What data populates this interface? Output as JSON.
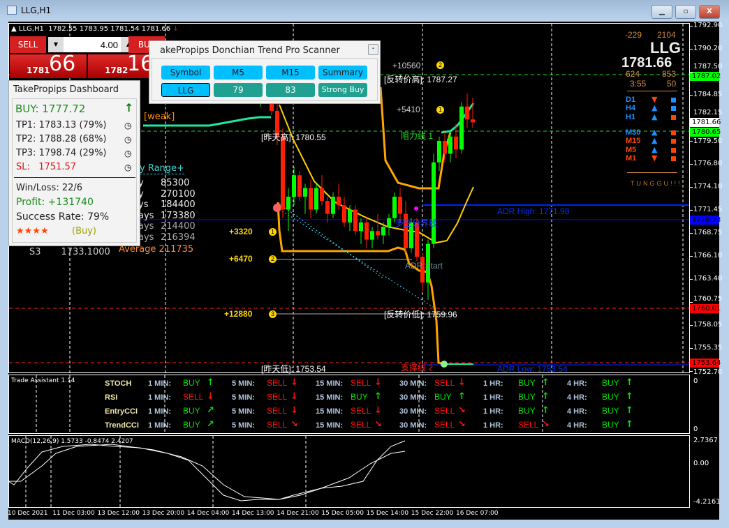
{
  "window": {
    "title": "LLG,H1",
    "buttons": [
      "minimize",
      "maximize",
      "close"
    ]
  },
  "chart_header": {
    "symbol": "LLG,H1",
    "ohlc": "1782.55 1783.95 1781.54 1781.66"
  },
  "trade_panel": {
    "sell_label": "SELL",
    "buy_label": "BUY",
    "volume": "4.00",
    "sell_big": "1781",
    "sell_small": "66",
    "buy_big": "1782",
    "buy_small": "16"
  },
  "dashboard": {
    "title": "TakePropips Dashboard",
    "signal": "BUY: 1777.72",
    "tp1": "TP1: 1783.13 (79%)",
    "tp2": "TP2: 1788.28 (68%)",
    "tp3": "TP3: 1798.74 (29%)",
    "sl_label": "SL:",
    "sl_value": "1751.57",
    "winloss": "Win/Loss: 22/6",
    "profit": "Profit: +131740",
    "success": "Success Rate: 79%",
    "stars": "★★★★",
    "rating": "(Buy)"
  },
  "scanner": {
    "title": "akePropips Donchian Trend Pro Scanner",
    "minimize": "-",
    "headers": [
      "Symbol",
      "M5",
      "M15",
      "Summary"
    ],
    "row": [
      "LLG",
      "79",
      "83",
      "Strong Buy"
    ]
  },
  "range_table": {
    "title": "y Range+",
    "rows": [
      [
        "y",
        "85300"
      ],
      [
        "y",
        "270100"
      ],
      [
        "ys",
        "184400"
      ],
      [
        "ays",
        "173380"
      ],
      [
        "ays",
        "214400"
      ],
      [
        "ays",
        "216394"
      ]
    ],
    "average_label": "Average",
    "average": "211735",
    "s3_label": "S3",
    "s3_value": "1733.1000",
    "weak": "[weak]"
  },
  "chart_labels": {
    "p10560": "+10560",
    "p5410": "+5410",
    "p3320": "+3320",
    "p6470": "+6470",
    "p12880": "+12880",
    "rev_high": "[反转价高]: 1787.27",
    "yest_high": "[昨天高]: 1780.55",
    "resist1": "阻力线 1",
    "rev_low": "[反转价低]: 1759.96",
    "yest_low": "[昨天低]: 1753.54",
    "support2": "支撑线 2",
    "adr_high": "ADR High: 1771.98",
    "adr_low": "ADR Low: 1753.54",
    "adr_start": "ADR Start",
    "divider": "多空分界线",
    "n1": "1",
    "n2": "2",
    "n3": "3"
  },
  "info": {
    "a": "-229",
    "b": "2104",
    "symbol": "LLG",
    "price": "1781.66",
    "c": "624",
    "d": "853",
    "time": "3:55",
    "e": "50",
    "status": "TUNGGU!!!",
    "timeframes": [
      {
        "tf": "D1",
        "dir": "down",
        "color": "#1e90ff",
        "sq": "#1e90ff"
      },
      {
        "tf": "H4",
        "dir": "up",
        "color": "#1e90ff",
        "sq": "#1e90ff"
      },
      {
        "tf": "H1",
        "dir": "up",
        "color": "#1e90ff",
        "sq": "#ff4500"
      },
      {
        "tf": "M30",
        "dir": "up",
        "color": "#1e90ff",
        "sq": "#ff4500"
      },
      {
        "tf": "M15",
        "dir": "up",
        "color": "#ff4500",
        "sq": "#ff4500"
      },
      {
        "tf": "M5",
        "dir": "up",
        "color": "#ff4500",
        "sq": "#ff4500"
      },
      {
        "tf": "M1",
        "dir": "down",
        "color": "#ff4500",
        "sq": "#ff4500"
      }
    ]
  },
  "price_axis": {
    "ticks": [
      "1792.90",
      "1790.20",
      "1787.50",
      "1784.85",
      "1782.15",
      "1779.50",
      "1776.80",
      "1774.10",
      "1771.45",
      "1768.75",
      "1766.10",
      "1763.40",
      "1760.75",
      "1758.05",
      "1755.35",
      "1752.70"
    ],
    "tags": [
      {
        "v": "1787.02",
        "bg": "#00ff00"
      },
      {
        "v": "1781.66",
        "bg": "#ffffff"
      },
      {
        "v": "1780.65",
        "bg": "#00ff00"
      },
      {
        "v": "1770.33",
        "bg": "#0000ff"
      },
      {
        "v": "1760.01",
        "bg": "#ff0000"
      },
      {
        "v": "1753.64",
        "bg": "#ff0000"
      }
    ]
  },
  "trade_assistant": {
    "title": "Trade Assistant 1.14",
    "axis_top": "0",
    "axis_bottom": "0",
    "rows": [
      {
        "name": "STOCH",
        "cells": [
          [
            "1 MIN:",
            "BUY",
            "up"
          ],
          [
            "5 MIN:",
            "SELL",
            "down"
          ],
          [
            "15 MIN:",
            "SELL",
            "down"
          ],
          [
            "30 MIN:",
            "SELL",
            "down"
          ],
          [
            "1 HR:",
            "BUY",
            "up"
          ],
          [
            "4 HR:",
            "BUY",
            "up"
          ]
        ]
      },
      {
        "name": "RSI",
        "cells": [
          [
            "1 MIN:",
            "SELL",
            "down"
          ],
          [
            "5 MIN:",
            "SELL",
            "down"
          ],
          [
            "15 MIN:",
            "BUY",
            "up"
          ],
          [
            "30 MIN:",
            "BUY",
            "up"
          ],
          [
            "1 HR:",
            "BUY",
            "up"
          ],
          [
            "4 HR:",
            "BUY",
            "up"
          ]
        ]
      },
      {
        "name": "EntryCCI",
        "cells": [
          [
            "1 MIN:",
            "BUY",
            "up-right"
          ],
          [
            "5 MIN:",
            "SELL",
            "down"
          ],
          [
            "15 MIN:",
            "SELL",
            "down"
          ],
          [
            "30 MIN:",
            "SELL",
            "down-right"
          ],
          [
            "1 HR:",
            "BUY",
            "up"
          ],
          [
            "4 HR:",
            "BUY",
            "up"
          ]
        ]
      },
      {
        "name": "TrendCCI",
        "cells": [
          [
            "1 MIN:",
            "BUY",
            "up-right"
          ],
          [
            "5 MIN:",
            "SELL",
            "down-right"
          ],
          [
            "15 MIN:",
            "SELL",
            "down-right"
          ],
          [
            "30 MIN:",
            "SELL",
            "down-right"
          ],
          [
            "1 HR:",
            "SELL",
            "down-right"
          ],
          [
            "4 HR:",
            "BUY",
            "up"
          ]
        ]
      }
    ],
    "buy_color": "#00e000",
    "sell_color": "#ff1010"
  },
  "macd": {
    "label": "MACD(12,26,9) 1.5733 -0.8474 2.4207",
    "axis": [
      "2.7367",
      "0.00",
      "-4.2161"
    ]
  },
  "time_axis": [
    "10 Dec 2021",
    "11 Dec 03:00",
    "13 Dec 12:00",
    "13 Dec 20:00",
    "14 Dec 04:00",
    "14 Dec 13:00",
    "14 Dec 21:00",
    "15 Dec 05:00",
    "15 Dec 14:00",
    "15 Dec 22:00",
    "16 Dec 07:00"
  ],
  "chart_data": {
    "type": "candlestick",
    "price_range": [
      1752.7,
      1792.9
    ],
    "bull_color": "#00ff00",
    "bear_color": "#ff2000",
    "candles": [
      [
        1785.0,
        1786.0,
        1783.8,
        1784.2
      ],
      [
        1784.2,
        1785.5,
        1783.5,
        1785.0
      ],
      [
        1785.0,
        1786.5,
        1784.0,
        1784.3
      ],
      [
        1784.3,
        1785.0,
        1782.5,
        1783.0
      ],
      [
        1783.0,
        1784.0,
        1779.0,
        1780.0
      ],
      [
        1780.0,
        1781.0,
        1770.5,
        1771.5
      ],
      [
        1771.5,
        1774.0,
        1769.0,
        1773.0
      ],
      [
        1773.0,
        1776.5,
        1772.0,
        1775.5
      ],
      [
        1775.5,
        1776.0,
        1772.5,
        1773.0
      ],
      [
        1773.0,
        1774.5,
        1771.0,
        1774.0
      ],
      [
        1774.0,
        1775.0,
        1770.5,
        1771.5
      ],
      [
        1771.5,
        1774.5,
        1771.0,
        1774.0
      ],
      [
        1774.0,
        1775.5,
        1772.0,
        1772.5
      ],
      [
        1772.5,
        1773.0,
        1770.0,
        1771.0
      ],
      [
        1771.0,
        1773.5,
        1770.5,
        1773.0
      ],
      [
        1773.0,
        1774.5,
        1771.5,
        1772.0
      ],
      [
        1772.0,
        1773.0,
        1769.5,
        1770.0
      ],
      [
        1770.0,
        1772.0,
        1769.0,
        1771.5
      ],
      [
        1771.5,
        1772.0,
        1768.5,
        1769.0
      ],
      [
        1769.0,
        1770.5,
        1767.5,
        1770.0
      ],
      [
        1770.0,
        1770.5,
        1767.0,
        1768.0
      ],
      [
        1768.0,
        1769.5,
        1767.0,
        1769.0
      ],
      [
        1769.0,
        1771.0,
        1768.0,
        1768.5
      ],
      [
        1768.5,
        1770.0,
        1767.5,
        1769.5
      ],
      [
        1769.5,
        1771.0,
        1768.5,
        1770.5
      ],
      [
        1770.5,
        1773.5,
        1770.0,
        1773.0
      ],
      [
        1773.0,
        1774.0,
        1770.0,
        1771.0
      ],
      [
        1771.0,
        1772.5,
        1766.5,
        1767.0
      ],
      [
        1767.0,
        1770.5,
        1766.5,
        1770.0
      ],
      [
        1770.0,
        1770.5,
        1765.5,
        1766.0
      ],
      [
        1766.0,
        1766.5,
        1762.0,
        1763.0
      ],
      [
        1763.0,
        1768.0,
        1761.0,
        1767.5
      ],
      [
        1767.5,
        1778.0,
        1767.0,
        1777.0
      ],
      [
        1777.0,
        1780.0,
        1776.0,
        1779.5
      ],
      [
        1779.5,
        1780.5,
        1777.0,
        1778.0
      ],
      [
        1778.0,
        1780.5,
        1777.0,
        1780.0
      ],
      [
        1780.0,
        1781.5,
        1777.5,
        1778.5
      ],
      [
        1778.5,
        1784.0,
        1778.0,
        1783.5
      ],
      [
        1783.5,
        1785.0,
        1781.0,
        1782.0
      ],
      [
        1782.0,
        1784.5,
        1781.0,
        1781.66
      ]
    ]
  }
}
